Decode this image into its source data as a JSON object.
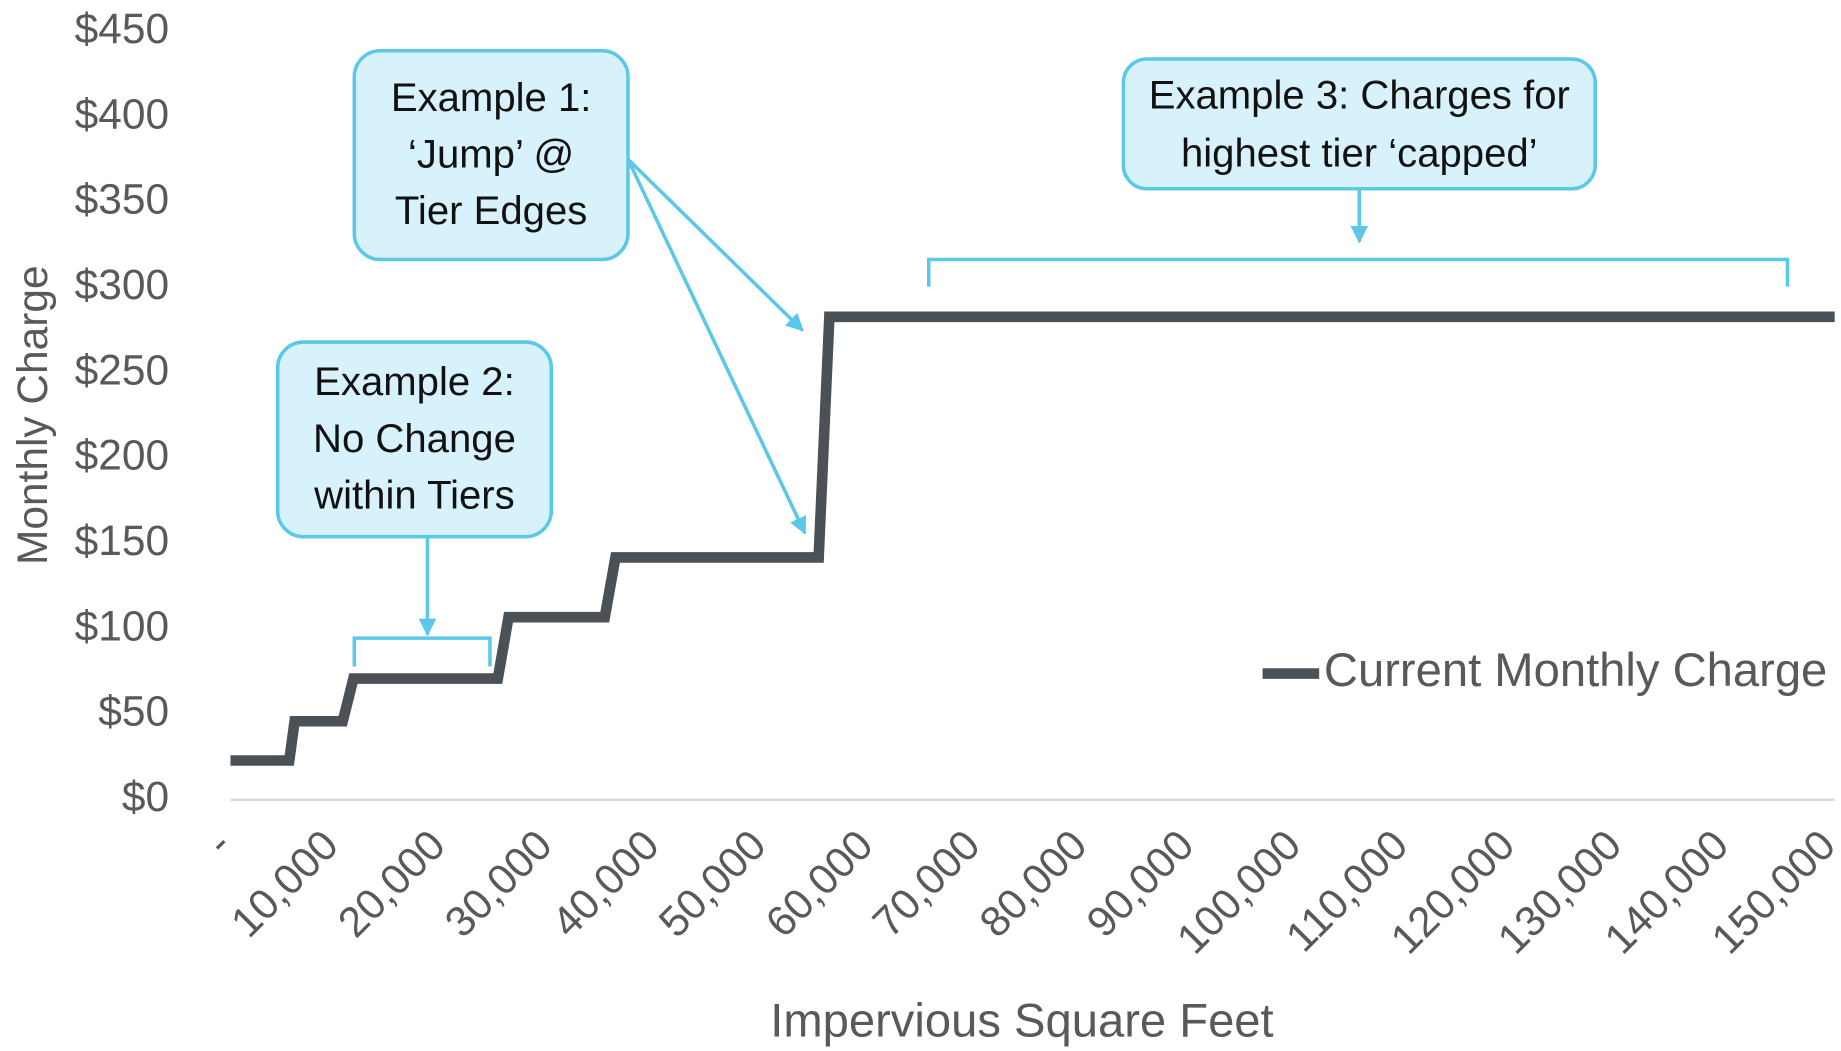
{
  "chart_data": {
    "type": "line",
    "xlabel": "Impervious Square Feet",
    "ylabel": "Monthly Charge",
    "x": [
      0,
      5500,
      6000,
      10500,
      11500,
      25000,
      26000,
      35000,
      36000,
      55000,
      56000,
      150000
    ],
    "series": [
      {
        "name": "Current Monthly Charge",
        "color": "#4a5258",
        "values": [
          23,
          23,
          46,
          46,
          71,
          71,
          107,
          107,
          142,
          142,
          283,
          283
        ]
      }
    ],
    "xlim": [
      0,
      150000
    ],
    "xticks": [
      {
        "value": 0,
        "label": "-"
      },
      {
        "value": 10000,
        "label": "10,000"
      },
      {
        "value": 20000,
        "label": "20,000"
      },
      {
        "value": 30000,
        "label": "30,000"
      },
      {
        "value": 40000,
        "label": "40,000"
      },
      {
        "value": 50000,
        "label": "50,000"
      },
      {
        "value": 60000,
        "label": "60,000"
      },
      {
        "value": 70000,
        "label": "70,000"
      },
      {
        "value": 80000,
        "label": "80,000"
      },
      {
        "value": 90000,
        "label": "90,000"
      },
      {
        "value": 100000,
        "label": "100,000"
      },
      {
        "value": 110000,
        "label": "110,000"
      },
      {
        "value": 120000,
        "label": "120,000"
      },
      {
        "value": 130000,
        "label": "130,000"
      },
      {
        "value": 140000,
        "label": "140,000"
      },
      {
        "value": 150000,
        "label": "150,000"
      }
    ],
    "ylim": [
      0,
      450
    ],
    "yticks": [
      {
        "value": 0,
        "label": "$0"
      },
      {
        "value": 50,
        "label": "$50"
      },
      {
        "value": 100,
        "label": "$100"
      },
      {
        "value": 150,
        "label": "$150"
      },
      {
        "value": 200,
        "label": "$200"
      },
      {
        "value": 250,
        "label": "$250"
      },
      {
        "value": 300,
        "label": "$300"
      },
      {
        "value": 350,
        "label": "$350"
      },
      {
        "value": 400,
        "label": "$400"
      },
      {
        "value": 450,
        "label": "$450"
      }
    ],
    "grid": false,
    "legend": "lower right",
    "annotations": [
      {
        "lines": [
          "Example 1:",
          "‘Jump’ @",
          "Tier Edges"
        ]
      },
      {
        "lines": [
          "Example 2:",
          "No Change",
          "within Tiers"
        ]
      },
      {
        "lines": [
          "Example 3: Charges for",
          "highest tier ‘capped’"
        ]
      }
    ]
  }
}
